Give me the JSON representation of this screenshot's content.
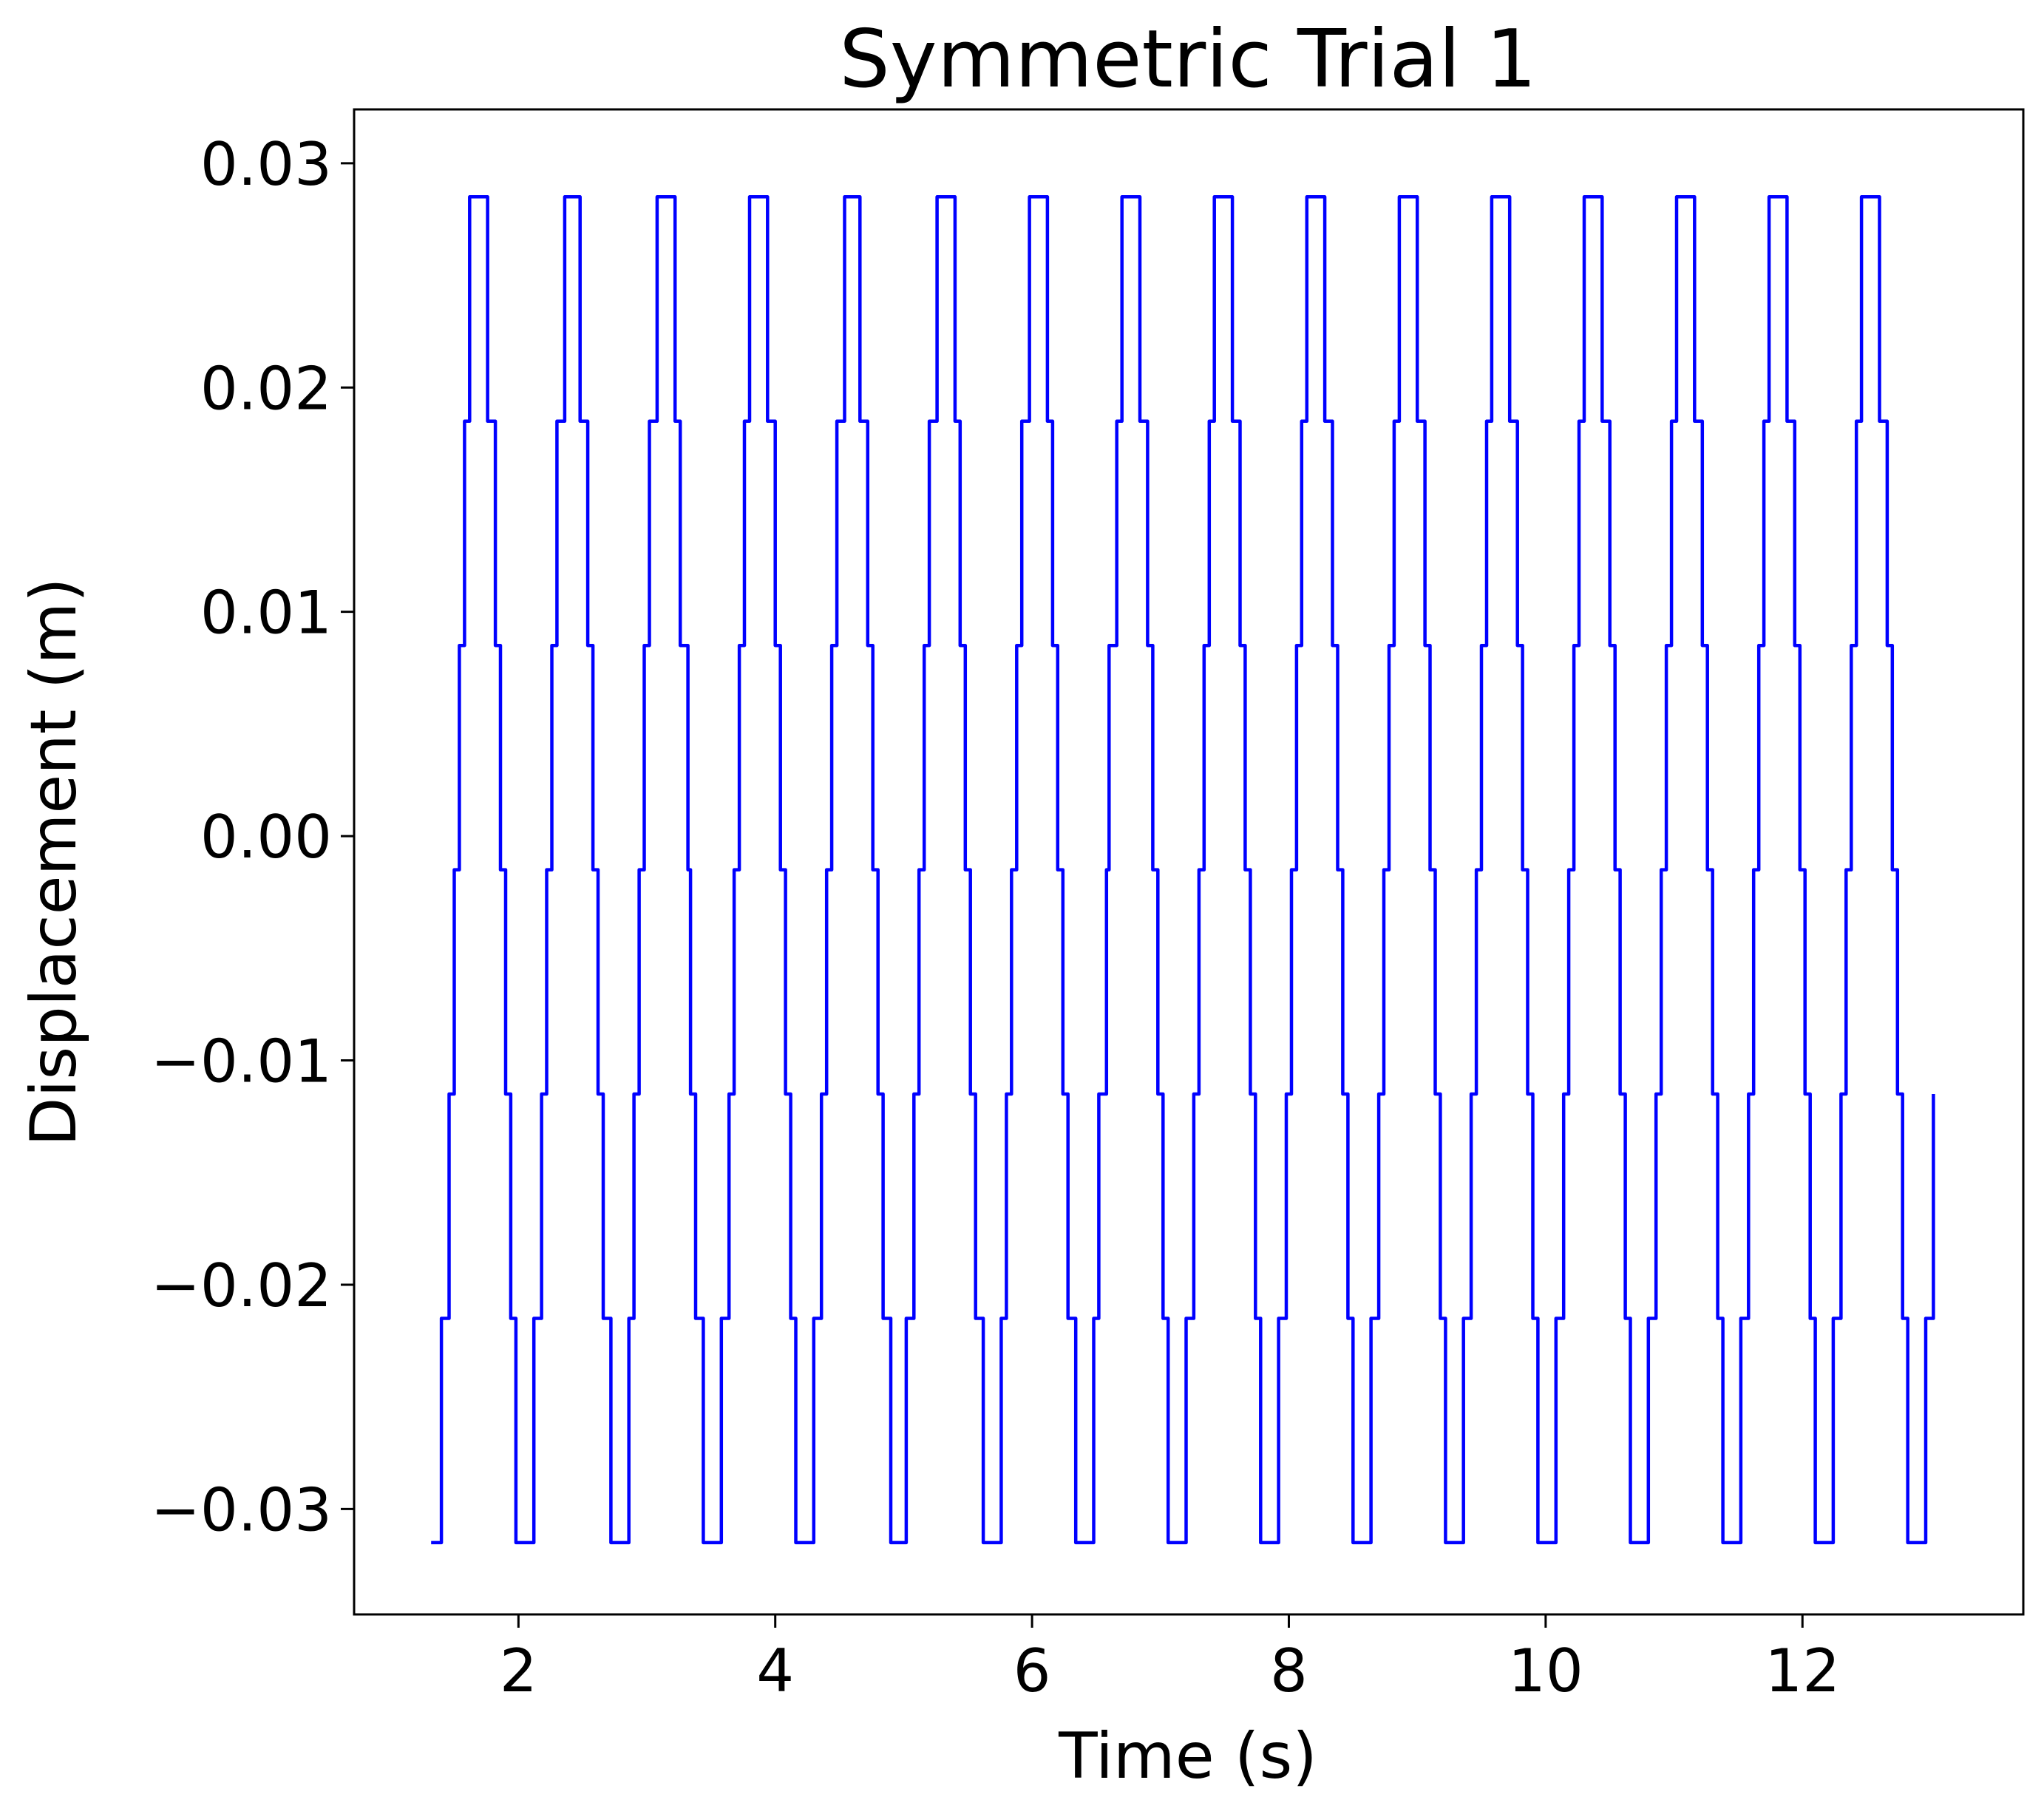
{
  "chart_data": {
    "type": "line",
    "title": "Symmetric Trial 1",
    "xlabel": "Time (s)",
    "ylabel": "Displacement (m)",
    "xlim": [
      0.72,
      13.72
    ],
    "ylim": [
      -0.0347,
      0.0324
    ],
    "xticks": [
      2,
      4,
      6,
      8,
      10,
      12
    ],
    "xtick_labels": [
      "2",
      "4",
      "6",
      "8",
      "10",
      "12"
    ],
    "yticks": [
      -0.03,
      -0.02,
      -0.01,
      0.0,
      0.01,
      0.02,
      0.03
    ],
    "ytick_labels": [
      "−0.03",
      "−0.02",
      "−0.01",
      "0.00",
      "0.01",
      "0.02",
      "0.03"
    ],
    "grid": false,
    "legend": "none",
    "series": [
      {
        "color": "#0000ff",
        "start_time": 1.32,
        "end_time": 13.03,
        "period_start": 0.728,
        "period_end": 0.7225,
        "levels": [
          -0.0315,
          -0.0215,
          -0.0115,
          -0.0015,
          0.0085,
          0.0185,
          0.0285
        ],
        "cycles": 16
      }
    ]
  }
}
